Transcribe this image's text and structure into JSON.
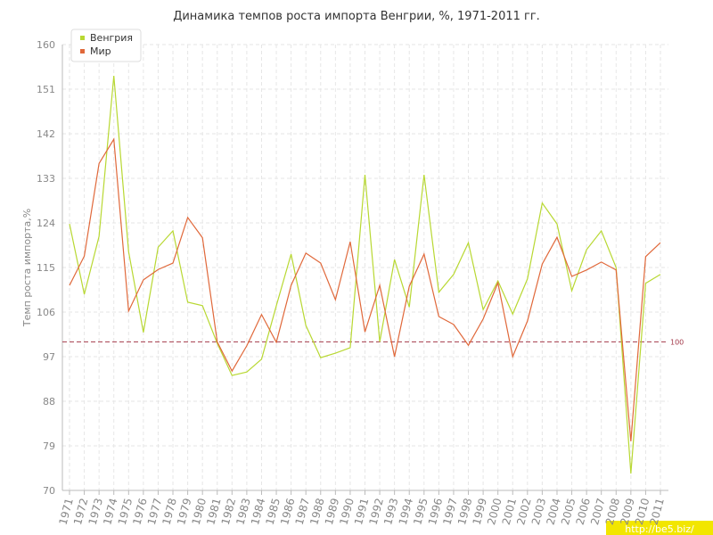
{
  "chart_data": {
    "type": "line",
    "title": "Динамика темпов роста импорта Венгрии, %, 1971-2011 гг.",
    "y_label": "Темп роста импорта,%",
    "categories": [
      "1971",
      "1972",
      "1973",
      "1974",
      "1975",
      "1976",
      "1977",
      "1978",
      "1979",
      "1980",
      "1981",
      "1982",
      "1983",
      "1984",
      "1985",
      "1986",
      "1987",
      "1988",
      "1989",
      "1990",
      "1991",
      "1992",
      "1993",
      "1994",
      "1995",
      "1996",
      "1997",
      "1998",
      "1999",
      "2000",
      "2001",
      "2002",
      "2003",
      "2004",
      "2005",
      "2006",
      "2007",
      "2008",
      "2009",
      "2010",
      "2011"
    ],
    "series": [
      {
        "name": "Венгрия",
        "color": "#b8d832",
        "values": [
          123.8,
          109.6,
          121.3,
          153.7,
          118.2,
          101.9,
          119.1,
          122.4,
          108,
          107.3,
          99.7,
          93.2,
          93.9,
          96.5,
          107.3,
          117.7,
          103.3,
          96.8,
          97.7,
          98.8,
          133.7,
          100,
          116.6,
          107,
          133.7,
          110,
          113.6,
          120,
          106.5,
          112.3,
          105.6,
          112.7,
          128,
          123.8,
          110.3,
          118.6,
          122.4,
          115,
          73.4,
          111.8,
          113.6
        ]
      },
      {
        "name": "Мир",
        "color": "#e0683a",
        "values": [
          111.4,
          117.3,
          136,
          140.9,
          106.2,
          112.5,
          114.6,
          115.9,
          125.1,
          121,
          100,
          94.1,
          99.2,
          105.5,
          99.9,
          111.4,
          117.9,
          115.9,
          108.5,
          120.2,
          102,
          111.4,
          97,
          111.2,
          117.7,
          105.1,
          103.5,
          99.3,
          104.6,
          111.9,
          97,
          104.2,
          115.7,
          121.1,
          113.2,
          114.5,
          116.1,
          114.5,
          79.9,
          117.2,
          120
        ]
      }
    ],
    "ylim": [
      70,
      160
    ],
    "yticks": [
      70,
      79,
      88,
      97,
      106,
      115,
      124,
      133,
      142,
      151,
      160
    ],
    "grid": true,
    "legend": "top-left",
    "reference_line": 100,
    "reference_color": "#a33a4a",
    "source_url": "http://be5.biz/"
  }
}
